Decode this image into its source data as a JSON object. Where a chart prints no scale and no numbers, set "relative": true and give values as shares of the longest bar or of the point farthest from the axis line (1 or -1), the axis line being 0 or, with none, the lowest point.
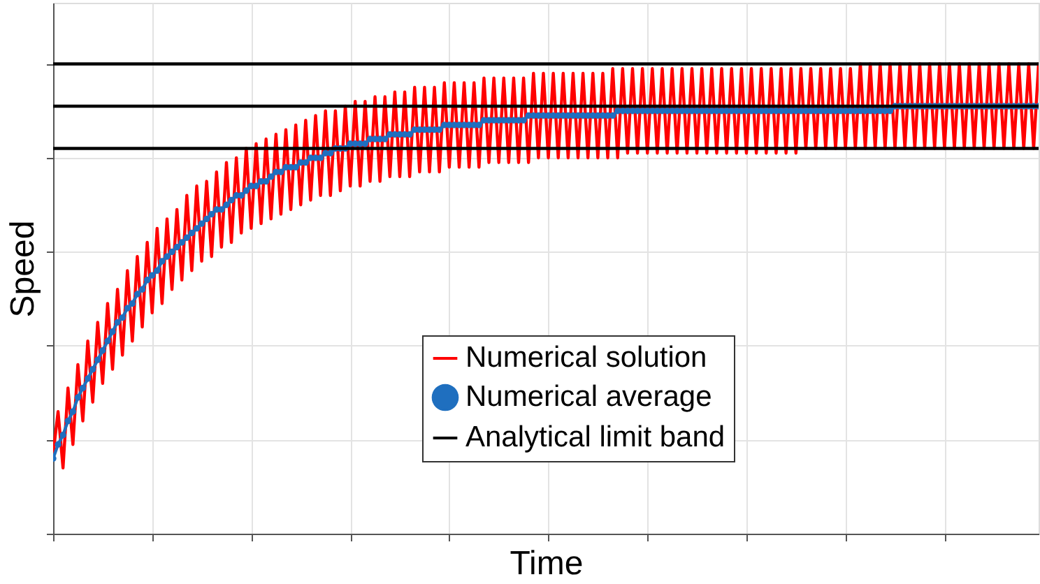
{
  "chart_data": {
    "type": "line",
    "relative": true,
    "xlabel": "Time",
    "ylabel": "Speed",
    "grid": true,
    "legend": "bottom right",
    "tick_labels": false,
    "categories": [
      null,
      null,
      null,
      null,
      null,
      null,
      null,
      null,
      null,
      null,
      null,
      null,
      null,
      null,
      null,
      null,
      null,
      null,
      null,
      null,
      null,
      null,
      null,
      null,
      null,
      null,
      null,
      null,
      null,
      null,
      null,
      null,
      null,
      null,
      null,
      null,
      null,
      null,
      null,
      null,
      null,
      null,
      null,
      null,
      null,
      null,
      null,
      null,
      null,
      null,
      null,
      null,
      null,
      null,
      null,
      null,
      null,
      null,
      null,
      null,
      null,
      null,
      null,
      null,
      null,
      null,
      null,
      null,
      null,
      null,
      null,
      null,
      null,
      null,
      null,
      null,
      null,
      null,
      null,
      null,
      null,
      null,
      null,
      null,
      null,
      null,
      null,
      null,
      null,
      null,
      null,
      null,
      null,
      null,
      null,
      null,
      null,
      null,
      null,
      null,
      null,
      null,
      null,
      null,
      null,
      null,
      null,
      null,
      null,
      null,
      null,
      null,
      null,
      null,
      null,
      null,
      null,
      null,
      null,
      null,
      null,
      null,
      null,
      null,
      null,
      null,
      null,
      null,
      null,
      null,
      null,
      null,
      null,
      null,
      null,
      null,
      null,
      null,
      null,
      null,
      null,
      null,
      null,
      null,
      null,
      null,
      null,
      null,
      null,
      null,
      null,
      null,
      null,
      null,
      null,
      null,
      null,
      null,
      null,
      null,
      null,
      null,
      null,
      null,
      null,
      null,
      null,
      null,
      null,
      null,
      null,
      null,
      null,
      null,
      null,
      null,
      null,
      null,
      null,
      null,
      null,
      null,
      null,
      null,
      null,
      null,
      null,
      null,
      null,
      null,
      null,
      null,
      null,
      null,
      null,
      null,
      null,
      null,
      null,
      null
    ],
    "series": [
      {
        "name": "Numerical solution",
        "type": "line",
        "color": "#ff0000",
        "values": [
          0.17,
          0.26,
          0.14,
          0.31,
          0.19,
          0.36,
          0.24,
          0.41,
          0.28,
          0.45,
          0.32,
          0.49,
          0.35,
          0.52,
          0.38,
          0.56,
          0.41,
          0.59,
          0.44,
          0.62,
          0.47,
          0.65,
          0.49,
          0.67,
          0.52,
          0.69,
          0.54,
          0.72,
          0.56,
          0.74,
          0.58,
          0.75,
          0.59,
          0.77,
          0.61,
          0.79,
          0.62,
          0.8,
          0.64,
          0.82,
          0.65,
          0.83,
          0.66,
          0.84,
          0.67,
          0.85,
          0.68,
          0.86,
          0.69,
          0.87,
          0.7,
          0.88,
          0.71,
          0.89,
          0.72,
          0.9,
          0.72,
          0.9,
          0.73,
          0.91,
          0.74,
          0.92,
          0.74,
          0.92,
          0.75,
          0.93,
          0.75,
          0.93,
          0.76,
          0.94,
          0.76,
          0.94,
          0.76,
          0.95,
          0.77,
          0.95,
          0.77,
          0.95,
          0.77,
          0.96,
          0.78,
          0.96,
          0.78,
          0.96,
          0.78,
          0.96,
          0.78,
          0.97,
          0.79,
          0.97,
          0.79,
          0.97,
          0.79,
          0.97,
          0.79,
          0.97,
          0.79,
          0.98,
          0.8,
          0.98,
          0.8,
          0.98,
          0.8,
          0.98,
          0.8,
          0.98,
          0.8,
          0.98,
          0.8,
          0.98,
          0.8,
          0.98,
          0.8,
          0.99,
          0.8,
          0.99,
          0.81,
          0.99,
          0.81,
          0.99,
          0.81,
          0.99,
          0.81,
          0.99,
          0.81,
          0.99,
          0.81,
          0.99,
          0.81,
          0.99,
          0.81,
          0.99,
          0.81,
          0.99,
          0.81,
          0.99,
          0.81,
          0.99,
          0.81,
          0.99,
          0.81,
          0.99,
          0.81,
          0.99,
          0.81,
          0.99,
          0.81,
          0.99,
          0.81,
          0.99,
          0.81,
          0.99,
          0.82,
          0.99,
          0.82,
          0.99,
          0.82,
          0.99,
          0.82,
          0.99,
          0.82,
          0.99,
          0.82,
          1.0,
          0.82,
          1.0,
          0.82,
          1.0,
          0.82,
          1.0,
          0.82,
          1.0,
          0.82,
          1.0,
          0.82,
          1.0,
          0.82,
          1.0,
          0.82,
          1.0,
          0.82,
          1.0,
          0.82,
          1.0,
          0.82,
          1.0,
          0.82,
          1.0,
          0.82,
          1.0,
          0.82,
          1.0,
          0.82,
          1.0,
          0.82,
          1.0,
          0.82,
          1.0,
          0.82,
          1.0
        ]
      },
      {
        "name": "Numerical average",
        "type": "line",
        "marker": "circle",
        "color": "#1f6fbf",
        "values": [
          0.16,
          0.19,
          0.21,
          0.24,
          0.26,
          0.29,
          0.31,
          0.33,
          0.35,
          0.37,
          0.39,
          0.41,
          0.43,
          0.45,
          0.46,
          0.48,
          0.49,
          0.51,
          0.52,
          0.54,
          0.55,
          0.56,
          0.58,
          0.59,
          0.6,
          0.61,
          0.62,
          0.63,
          0.64,
          0.65,
          0.66,
          0.67,
          0.68,
          0.69,
          0.69,
          0.7,
          0.71,
          0.72,
          0.72,
          0.73,
          0.74,
          0.74,
          0.75,
          0.75,
          0.76,
          0.77,
          0.77,
          0.78,
          0.78,
          0.78,
          0.79,
          0.79,
          0.8,
          0.8,
          0.8,
          0.81,
          0.81,
          0.82,
          0.82,
          0.82,
          0.83,
          0.83,
          0.83,
          0.83,
          0.84,
          0.84,
          0.84,
          0.84,
          0.85,
          0.85,
          0.85,
          0.85,
          0.85,
          0.86,
          0.86,
          0.86,
          0.86,
          0.86,
          0.86,
          0.87,
          0.87,
          0.87,
          0.87,
          0.87,
          0.87,
          0.87,
          0.87,
          0.88,
          0.88,
          0.88,
          0.88,
          0.88,
          0.88,
          0.88,
          0.88,
          0.88,
          0.89,
          0.89,
          0.89,
          0.89,
          0.89,
          0.89,
          0.89,
          0.89,
          0.89,
          0.89,
          0.89,
          0.89,
          0.89,
          0.89,
          0.89,
          0.89,
          0.89,
          0.89,
          0.9,
          0.9,
          0.9,
          0.9,
          0.9,
          0.9,
          0.9,
          0.9,
          0.9,
          0.9,
          0.9,
          0.9,
          0.9,
          0.9,
          0.9,
          0.9,
          0.9,
          0.9,
          0.9,
          0.9,
          0.9,
          0.9,
          0.9,
          0.9,
          0.9,
          0.9,
          0.9,
          0.9,
          0.9,
          0.9,
          0.9,
          0.9,
          0.9,
          0.9,
          0.9,
          0.9,
          0.9,
          0.9,
          0.9,
          0.9,
          0.9,
          0.9,
          0.9,
          0.9,
          0.9,
          0.9,
          0.9,
          0.9,
          0.9,
          0.9,
          0.9,
          0.9,
          0.9,
          0.9,
          0.9,
          0.9,
          0.91,
          0.91,
          0.91,
          0.91,
          0.91,
          0.91,
          0.91,
          0.91,
          0.91,
          0.91,
          0.91,
          0.91,
          0.91,
          0.91,
          0.91,
          0.91,
          0.91,
          0.91,
          0.91,
          0.91,
          0.91,
          0.91,
          0.91,
          0.91,
          0.91,
          0.91,
          0.91,
          0.91,
          0.91,
          0.91
        ]
      },
      {
        "name": "Analytical limit band",
        "color": "#000000",
        "values": [
          1.0,
          1.0,
          1.0,
          1.0,
          1.0,
          1.0,
          1.0,
          1.0,
          1.0,
          1.0,
          1.0,
          1.0,
          1.0,
          1.0,
          1.0,
          1.0,
          1.0,
          1.0,
          1.0,
          1.0,
          1.0,
          1.0,
          1.0,
          1.0,
          1.0,
          1.0,
          1.0,
          1.0,
          1.0,
          1.0,
          1.0,
          1.0,
          1.0,
          1.0,
          1.0,
          1.0,
          1.0,
          1.0,
          1.0,
          1.0,
          1.0,
          1.0,
          1.0,
          1.0,
          1.0,
          1.0,
          1.0,
          1.0,
          1.0,
          1.0,
          1.0,
          1.0,
          1.0,
          1.0,
          1.0,
          1.0,
          1.0,
          1.0,
          1.0,
          1.0,
          1.0,
          1.0,
          1.0,
          1.0,
          1.0,
          1.0,
          1.0,
          1.0,
          1.0,
          1.0,
          1.0,
          1.0,
          1.0,
          1.0,
          1.0,
          1.0,
          1.0,
          1.0,
          1.0,
          1.0,
          1.0,
          1.0,
          1.0,
          1.0,
          1.0,
          1.0,
          1.0,
          1.0,
          1.0,
          1.0,
          1.0,
          1.0,
          1.0,
          1.0,
          1.0,
          1.0,
          1.0,
          1.0,
          1.0,
          1.0,
          1.0,
          1.0,
          1.0,
          1.0,
          1.0,
          1.0,
          1.0,
          1.0,
          1.0,
          1.0,
          1.0,
          1.0,
          1.0,
          1.0,
          1.0,
          1.0,
          1.0,
          1.0,
          1.0,
          1.0,
          1.0,
          1.0,
          1.0,
          1.0,
          1.0,
          1.0,
          1.0,
          1.0,
          1.0,
          1.0,
          1.0,
          1.0,
          1.0,
          1.0,
          1.0,
          1.0,
          1.0,
          1.0,
          1.0,
          1.0,
          1.0,
          1.0,
          1.0,
          1.0,
          1.0,
          1.0,
          1.0,
          1.0,
          1.0,
          1.0,
          1.0,
          1.0,
          1.0,
          1.0,
          1.0,
          1.0,
          1.0,
          1.0,
          1.0,
          1.0,
          1.0,
          1.0,
          1.0,
          1.0,
          1.0,
          1.0,
          1.0,
          1.0,
          1.0,
          1.0,
          1.0,
          1.0,
          1.0,
          1.0,
          1.0,
          1.0,
          1.0,
          1.0,
          1.0,
          1.0,
          1.0,
          1.0,
          1.0,
          1.0,
          1.0,
          1.0,
          1.0,
          1.0,
          1.0,
          1.0,
          1.0,
          1.0,
          1.0,
          1.0,
          1.0,
          1.0,
          1.0,
          1.0,
          1.0,
          1.0
        ]
      },
      {
        "color": "#000000",
        "values": [
          0.91,
          0.91,
          0.91,
          0.91,
          0.91,
          0.91,
          0.91,
          0.91,
          0.91,
          0.91,
          0.91,
          0.91,
          0.91,
          0.91,
          0.91,
          0.91,
          0.91,
          0.91,
          0.91,
          0.91,
          0.91,
          0.91,
          0.91,
          0.91,
          0.91,
          0.91,
          0.91,
          0.91,
          0.91,
          0.91,
          0.91,
          0.91,
          0.91,
          0.91,
          0.91,
          0.91,
          0.91,
          0.91,
          0.91,
          0.91,
          0.91,
          0.91,
          0.91,
          0.91,
          0.91,
          0.91,
          0.91,
          0.91,
          0.91,
          0.91,
          0.91,
          0.91,
          0.91,
          0.91,
          0.91,
          0.91,
          0.91,
          0.91,
          0.91,
          0.91,
          0.91,
          0.91,
          0.91,
          0.91,
          0.91,
          0.91,
          0.91,
          0.91,
          0.91,
          0.91,
          0.91,
          0.91,
          0.91,
          0.91,
          0.91,
          0.91,
          0.91,
          0.91,
          0.91,
          0.91,
          0.91,
          0.91,
          0.91,
          0.91,
          0.91,
          0.91,
          0.91,
          0.91,
          0.91,
          0.91,
          0.91,
          0.91,
          0.91,
          0.91,
          0.91,
          0.91,
          0.91,
          0.91,
          0.91,
          0.91,
          0.91,
          0.91,
          0.91,
          0.91,
          0.91,
          0.91,
          0.91,
          0.91,
          0.91,
          0.91,
          0.91,
          0.91,
          0.91,
          0.91,
          0.91,
          0.91,
          0.91,
          0.91,
          0.91,
          0.91,
          0.91,
          0.91,
          0.91,
          0.91,
          0.91,
          0.91,
          0.91,
          0.91,
          0.91,
          0.91,
          0.91,
          0.91,
          0.91,
          0.91,
          0.91,
          0.91,
          0.91,
          0.91,
          0.91,
          0.91,
          0.91,
          0.91,
          0.91,
          0.91,
          0.91,
          0.91,
          0.91,
          0.91,
          0.91,
          0.91,
          0.91,
          0.91,
          0.91,
          0.91,
          0.91,
          0.91,
          0.91,
          0.91,
          0.91,
          0.91,
          0.91,
          0.91,
          0.91,
          0.91,
          0.91,
          0.91,
          0.91,
          0.91,
          0.91,
          0.91,
          0.91,
          0.91,
          0.91,
          0.91,
          0.91,
          0.91,
          0.91,
          0.91,
          0.91,
          0.91,
          0.91,
          0.91,
          0.91,
          0.91,
          0.91,
          0.91,
          0.91,
          0.91,
          0.91,
          0.91,
          0.91,
          0.91,
          0.91,
          0.91,
          0.91,
          0.91,
          0.91,
          0.91,
          0.91,
          0.91
        ]
      },
      {
        "color": "#000000",
        "values": [
          0.82,
          0.82,
          0.82,
          0.82,
          0.82,
          0.82,
          0.82,
          0.82,
          0.82,
          0.82,
          0.82,
          0.82,
          0.82,
          0.82,
          0.82,
          0.82,
          0.82,
          0.82,
          0.82,
          0.82,
          0.82,
          0.82,
          0.82,
          0.82,
          0.82,
          0.82,
          0.82,
          0.82,
          0.82,
          0.82,
          0.82,
          0.82,
          0.82,
          0.82,
          0.82,
          0.82,
          0.82,
          0.82,
          0.82,
          0.82,
          0.82,
          0.82,
          0.82,
          0.82,
          0.82,
          0.82,
          0.82,
          0.82,
          0.82,
          0.82,
          0.82,
          0.82,
          0.82,
          0.82,
          0.82,
          0.82,
          0.82,
          0.82,
          0.82,
          0.82,
          0.82,
          0.82,
          0.82,
          0.82,
          0.82,
          0.82,
          0.82,
          0.82,
          0.82,
          0.82,
          0.82,
          0.82,
          0.82,
          0.82,
          0.82,
          0.82,
          0.82,
          0.82,
          0.82,
          0.82,
          0.82,
          0.82,
          0.82,
          0.82,
          0.82,
          0.82,
          0.82,
          0.82,
          0.82,
          0.82,
          0.82,
          0.82,
          0.82,
          0.82,
          0.82,
          0.82,
          0.82,
          0.82,
          0.82,
          0.82,
          0.82,
          0.82,
          0.82,
          0.82,
          0.82,
          0.82,
          0.82,
          0.82,
          0.82,
          0.82,
          0.82,
          0.82,
          0.82,
          0.82,
          0.82,
          0.82,
          0.82,
          0.82,
          0.82,
          0.82,
          0.82,
          0.82,
          0.82,
          0.82,
          0.82,
          0.82,
          0.82,
          0.82,
          0.82,
          0.82,
          0.82,
          0.82,
          0.82,
          0.82,
          0.82,
          0.82,
          0.82,
          0.82,
          0.82,
          0.82,
          0.82,
          0.82,
          0.82,
          0.82,
          0.82,
          0.82,
          0.82,
          0.82,
          0.82,
          0.82,
          0.82,
          0.82,
          0.82,
          0.82,
          0.82,
          0.82,
          0.82,
          0.82,
          0.82,
          0.82,
          0.82,
          0.82,
          0.82,
          0.82,
          0.82,
          0.82,
          0.82,
          0.82,
          0.82,
          0.82,
          0.82,
          0.82,
          0.82,
          0.82,
          0.82,
          0.82,
          0.82,
          0.82,
          0.82,
          0.82,
          0.82,
          0.82,
          0.82,
          0.82,
          0.82,
          0.82,
          0.82,
          0.82,
          0.82,
          0.82,
          0.82,
          0.82,
          0.82,
          0.82,
          0.82,
          0.82,
          0.82,
          0.82,
          0.82,
          0.82
        ]
      }
    ]
  }
}
